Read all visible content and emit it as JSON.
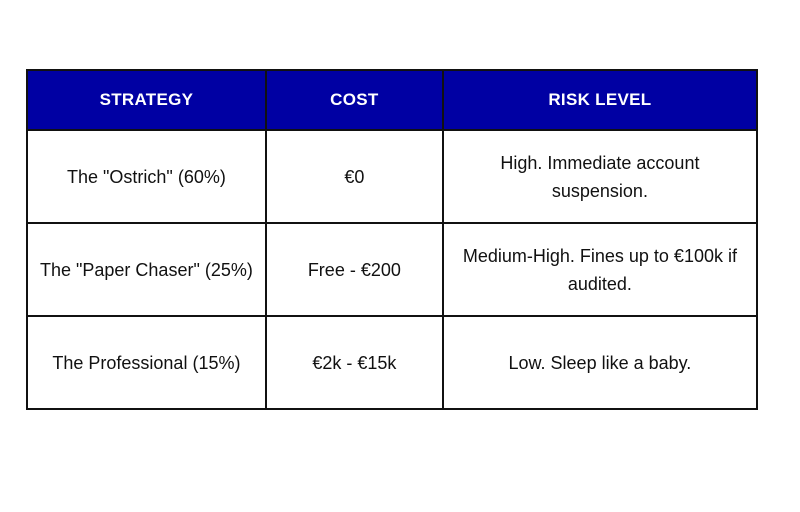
{
  "header_color": "#0000A3",
  "table": {
    "headers": [
      "STRATEGY",
      "COST",
      "RISK LEVEL"
    ],
    "rows": [
      [
        "The \"Ostrich\" (60%)",
        "€0",
        "High. Immediate account suspension."
      ],
      [
        "The \"Paper Chaser\" (25%)",
        "Free - €200",
        "Medium-High. Fines up to €100k if audited."
      ],
      [
        "The Professional (15%)",
        "€2k - €15k",
        "Low. Sleep like a baby."
      ]
    ]
  }
}
